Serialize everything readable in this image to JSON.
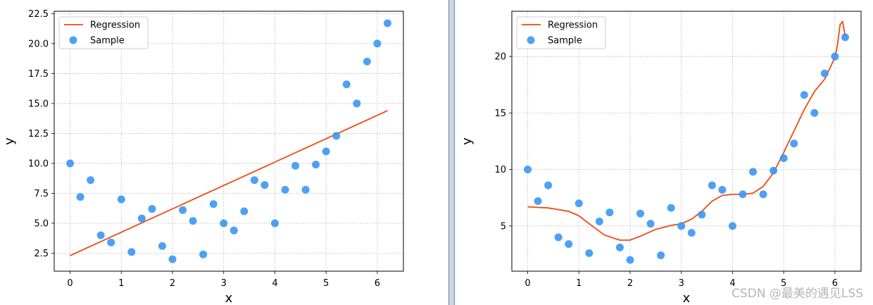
{
  "watermark": "CSDN @最美的遇见LSS",
  "chart_data": [
    {
      "type": "scatter",
      "xlabel": "x",
      "ylabel": "y",
      "xlim": [
        -0.31,
        6.51
      ],
      "ylim": [
        1.0,
        22.7
      ],
      "xticks": [
        0,
        1,
        2,
        3,
        4,
        5,
        6
      ],
      "yticks": [
        2.5,
        5.0,
        7.5,
        10.0,
        12.5,
        15.0,
        17.5,
        20.0,
        22.5
      ],
      "ytick_labels": [
        "2.5",
        "5.0",
        "7.5",
        "10.0",
        "12.5",
        "15.0",
        "17.5",
        "20.0",
        "22.5"
      ],
      "grid": true,
      "legend": {
        "position": "top-left",
        "entries": [
          "Regression",
          "Sample"
        ]
      },
      "colors": {
        "line": "#ee4a11",
        "points": "#3a97f3"
      },
      "series": [
        {
          "name": "Regression",
          "kind": "line",
          "x": [
            0,
            6.2
          ],
          "y": [
            2.3,
            14.4
          ]
        },
        {
          "name": "Sample",
          "kind": "scatter",
          "x": [
            0,
            0.2,
            0.4,
            0.6,
            0.8,
            1.0,
            1.2,
            1.4,
            1.6,
            1.8,
            2.0,
            2.2,
            2.4,
            2.6,
            2.8,
            3.0,
            3.2,
            3.4,
            3.6,
            3.8,
            4.0,
            4.2,
            4.4,
            4.6,
            4.8,
            5.0,
            5.2,
            5.4,
            5.6,
            5.8,
            6.0,
            6.2
          ],
          "y": [
            10.0,
            7.2,
            8.6,
            4.0,
            3.4,
            7.0,
            2.6,
            5.4,
            6.2,
            3.1,
            2.0,
            6.1,
            5.2,
            2.4,
            6.6,
            5.0,
            4.4,
            6.0,
            8.6,
            8.2,
            5.0,
            7.8,
            9.8,
            7.8,
            9.9,
            11.0,
            12.3,
            16.6,
            15.0,
            18.5,
            20.0,
            21.7
          ]
        }
      ]
    },
    {
      "type": "scatter",
      "xlabel": "x",
      "ylabel": "y",
      "xlim": [
        -0.31,
        6.51
      ],
      "ylim": [
        1.0,
        24.0
      ],
      "xticks": [
        0,
        1,
        2,
        3,
        4,
        5,
        6
      ],
      "yticks": [
        5,
        10,
        15,
        20
      ],
      "ytick_labels": [
        "5",
        "10",
        "15",
        "20"
      ],
      "grid": true,
      "legend": {
        "position": "top-left",
        "entries": [
          "Regression",
          "Sample"
        ]
      },
      "colors": {
        "line": "#ee4a11",
        "points": "#3a97f3"
      },
      "series": [
        {
          "name": "Regression",
          "kind": "line",
          "x": [
            0,
            0.4,
            0.8,
            1.0,
            1.2,
            1.5,
            1.8,
            2.0,
            2.2,
            2.5,
            2.8,
            3.0,
            3.2,
            3.4,
            3.6,
            3.8,
            4.0,
            4.2,
            4.4,
            4.6,
            4.8,
            5.0,
            5.2,
            5.4,
            5.6,
            5.8,
            6.0,
            6.05,
            6.1,
            6.15,
            6.2
          ],
          "y": [
            6.7,
            6.6,
            6.3,
            5.9,
            5.2,
            4.2,
            3.75,
            3.75,
            4.1,
            4.7,
            5.05,
            5.2,
            5.6,
            6.3,
            7.2,
            7.7,
            7.8,
            7.8,
            7.9,
            8.5,
            9.7,
            11.5,
            13.4,
            15.3,
            16.9,
            18.0,
            19.9,
            21.0,
            22.8,
            23.1,
            21.8
          ]
        },
        {
          "name": "Sample",
          "kind": "scatter",
          "x": [
            0,
            0.2,
            0.4,
            0.6,
            0.8,
            1.0,
            1.2,
            1.4,
            1.6,
            1.8,
            2.0,
            2.2,
            2.4,
            2.6,
            2.8,
            3.0,
            3.2,
            3.4,
            3.6,
            3.8,
            4.0,
            4.2,
            4.4,
            4.6,
            4.8,
            5.0,
            5.2,
            5.4,
            5.6,
            5.8,
            6.0,
            6.2
          ],
          "y": [
            10.0,
            7.2,
            8.6,
            4.0,
            3.4,
            7.0,
            2.6,
            5.4,
            6.2,
            3.1,
            2.0,
            6.1,
            5.2,
            2.4,
            6.6,
            5.0,
            4.4,
            6.0,
            8.6,
            8.2,
            5.0,
            7.8,
            9.8,
            7.8,
            9.9,
            11.0,
            12.3,
            16.6,
            15.0,
            18.5,
            20.0,
            21.7
          ]
        }
      ]
    }
  ]
}
